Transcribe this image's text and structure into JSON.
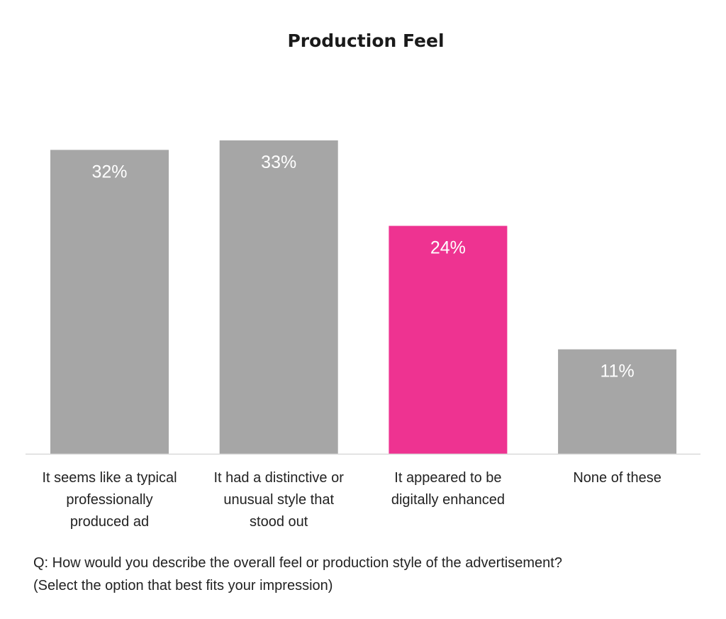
{
  "chart_data": {
    "type": "bar",
    "title": "Production Feel",
    "categories": [
      [
        "It seems like a typical",
        "professionally",
        "produced ad"
      ],
      [
        "It had a distinctive or",
        "unusual style that",
        "stood out"
      ],
      [
        "It appeared to be",
        "digitally enhanced"
      ],
      [
        "None of these"
      ]
    ],
    "values": [
      32,
      33,
      24,
      11
    ],
    "value_labels": [
      "32%",
      "33%",
      "24%",
      "11%"
    ],
    "colors": [
      "#a6a6a6",
      "#a6a6a6",
      "#ee3391",
      "#a6a6a6"
    ],
    "ylim": [
      0,
      33
    ],
    "grid": false,
    "xlabel": "",
    "ylabel": ""
  },
  "question": {
    "line1": "Q: How would you describe the overall feel or production style of the advertisement?",
    "line2": "(Select the option that best fits your impression)"
  }
}
